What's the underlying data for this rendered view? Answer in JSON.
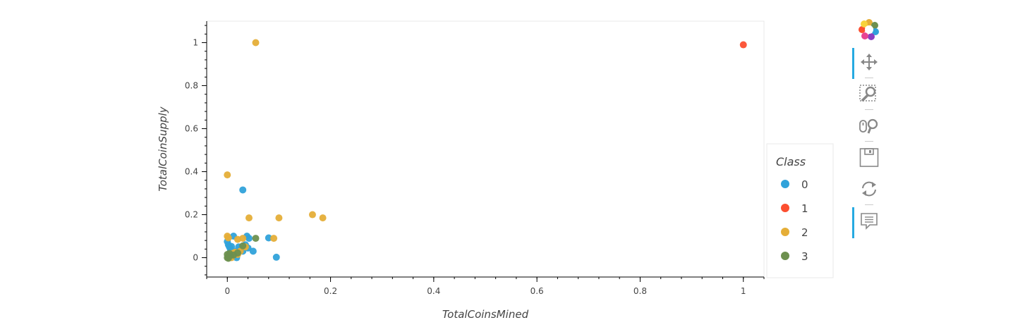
{
  "chart_data": {
    "type": "scatter",
    "xlabel": "TotalCoinsMined",
    "ylabel": "TotalCoinSupply",
    "xlim": [
      -0.04,
      1.04
    ],
    "ylim": [
      -0.09,
      1.1
    ],
    "x_ticks": [
      0,
      0.2,
      0.4,
      0.6,
      0.8,
      1
    ],
    "y_ticks": [
      0,
      0.2,
      0.4,
      0.6,
      0.8,
      1
    ],
    "x_tick_labels": [
      "0",
      "0.2",
      "0.4",
      "0.6",
      "0.8",
      "1"
    ],
    "y_tick_labels": [
      "0",
      "0.2",
      "0.4",
      "0.6",
      "0.8",
      "1"
    ],
    "grid": false,
    "legend": {
      "title": "Class",
      "placement": "right"
    },
    "series": [
      {
        "name": "0",
        "color": "#30a2da",
        "points": [
          [
            0.0,
            0.075
          ],
          [
            0.002,
            0.06
          ],
          [
            0.004,
            0.05
          ],
          [
            0.006,
            0.04
          ],
          [
            0.008,
            0.052
          ],
          [
            0.012,
            0.1
          ],
          [
            0.015,
            0.03
          ],
          [
            0.018,
            0.0
          ],
          [
            0.02,
            0.02
          ],
          [
            0.022,
            0.05
          ],
          [
            0.025,
            0.035
          ],
          [
            0.03,
            0.03
          ],
          [
            0.03,
            0.315
          ],
          [
            0.035,
            0.06
          ],
          [
            0.038,
            0.1
          ],
          [
            0.04,
            0.045
          ],
          [
            0.042,
            0.09
          ],
          [
            0.05,
            0.03
          ],
          [
            0.08,
            0.092
          ],
          [
            0.095,
            0.002
          ],
          [
            0.005,
            0.015
          ],
          [
            0.01,
            0.008
          ]
        ]
      },
      {
        "name": "1",
        "color": "#fc4f30",
        "points": [
          [
            1.0,
            0.99
          ]
        ]
      },
      {
        "name": "2",
        "color": "#e5ae38",
        "points": [
          [
            0.055,
            1.0
          ],
          [
            0.0,
            0.385
          ],
          [
            0.0,
            0.1
          ],
          [
            0.002,
            0.092
          ],
          [
            0.042,
            0.185
          ],
          [
            0.1,
            0.185
          ],
          [
            0.165,
            0.2
          ],
          [
            0.185,
            0.185
          ],
          [
            0.09,
            0.09
          ],
          [
            0.03,
            0.09
          ],
          [
            0.02,
            0.085
          ],
          [
            0.01,
            0.02
          ],
          [
            0.015,
            0.025
          ],
          [
            0.025,
            0.03
          ],
          [
            0.035,
            0.05
          ],
          [
            0.005,
            0.01
          ],
          [
            0.02,
            0.015
          ],
          [
            0.008,
            0.0
          ]
        ]
      },
      {
        "name": "3",
        "color": "#6d904f",
        "points": [
          [
            0.0,
            0.015
          ],
          [
            0.0,
            0.0
          ],
          [
            0.002,
            0.005
          ],
          [
            0.004,
            0.02
          ],
          [
            0.006,
            0.01
          ],
          [
            0.012,
            0.012
          ],
          [
            0.02,
            0.022
          ],
          [
            0.03,
            0.055
          ],
          [
            0.055,
            0.09
          ],
          [
            0.002,
            -0.003
          ]
        ]
      }
    ]
  },
  "toolbar": {
    "tools": [
      {
        "name": "bokeh-logo-icon",
        "interactable": true
      },
      {
        "name": "pan-tool-icon",
        "interactable": true,
        "active": true
      },
      {
        "name": "box-zoom-tool-icon",
        "interactable": true
      },
      {
        "name": "wheel-zoom-tool-icon",
        "interactable": true
      },
      {
        "name": "save-tool-icon",
        "interactable": true
      },
      {
        "name": "reset-tool-icon",
        "interactable": true
      },
      {
        "name": "hover-tool-icon",
        "interactable": true,
        "active": true
      }
    ]
  }
}
